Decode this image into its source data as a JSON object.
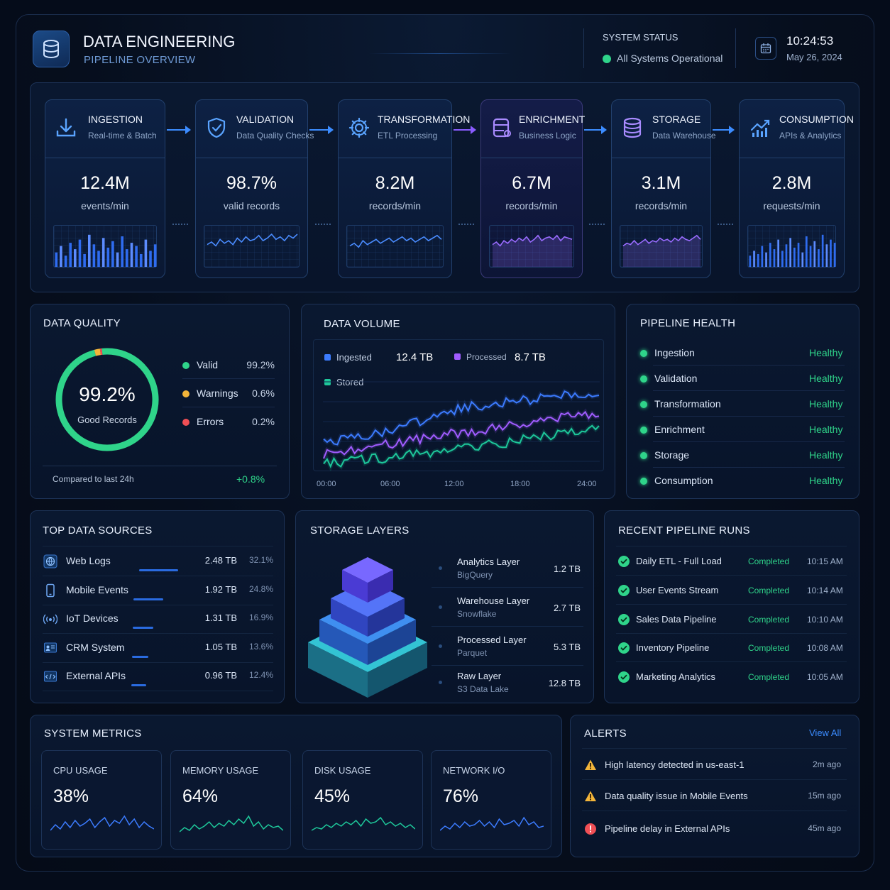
{
  "header": {
    "title": "DATA ENGINEERING",
    "subtitle": "PIPELINE OVERVIEW",
    "system_status_label": "SYSTEM STATUS",
    "system_status_value": "All Systems Operational",
    "time": "10:24:53",
    "date": "May 26, 2024"
  },
  "stages": [
    {
      "name": "INGESTION",
      "sub": "Real-time & Batch",
      "value": "12.4M",
      "unit": "events/min",
      "icon": "download-icon",
      "color": "#3c8cff",
      "chart": "bars",
      "spark": [
        18,
        26,
        14,
        30,
        22,
        34,
        16,
        40,
        28,
        20,
        36,
        24,
        32,
        18,
        38,
        22,
        30,
        26,
        16,
        34,
        20,
        28
      ]
    },
    {
      "name": "VALIDATION",
      "sub": "Data Quality Checks",
      "value": "98.7%",
      "unit": "valid records",
      "icon": "shield-check-icon",
      "color": "#3c8cff",
      "chart": "line",
      "spark": [
        30,
        34,
        28,
        38,
        32,
        36,
        30,
        40,
        34,
        42,
        36,
        38,
        44,
        36,
        40,
        46,
        38,
        42,
        36,
        44,
        40,
        46
      ]
    },
    {
      "name": "TRANSFORMATION",
      "sub": "ETL Processing",
      "value": "8.2M",
      "unit": "records/min",
      "icon": "gear-icon",
      "color": "#3c8cff",
      "chart": "line",
      "spark": [
        28,
        32,
        26,
        36,
        30,
        34,
        38,
        32,
        36,
        40,
        34,
        38,
        42,
        36,
        40,
        34,
        38,
        42,
        36,
        40,
        44,
        38
      ]
    },
    {
      "name": "ENRICHMENT",
      "sub": "Business Logic",
      "value": "6.7M",
      "unit": "records/min",
      "icon": "database-plus-icon",
      "color": "#8a5cff",
      "chart": "area",
      "spark": [
        30,
        34,
        28,
        36,
        32,
        38,
        34,
        40,
        36,
        42,
        34,
        38,
        44,
        36,
        40,
        42,
        38,
        44,
        36,
        42,
        40,
        38
      ]
    },
    {
      "name": "STORAGE",
      "sub": "Data Warehouse",
      "value": "3.1M",
      "unit": "records/min",
      "icon": "database-icon",
      "color": "#8a5cff",
      "chart": "area",
      "spark": [
        28,
        32,
        30,
        36,
        30,
        34,
        38,
        32,
        36,
        34,
        40,
        36,
        38,
        34,
        40,
        36,
        42,
        38,
        36,
        40,
        44,
        38
      ]
    },
    {
      "name": "CONSUMPTION",
      "sub": "APIs & Analytics",
      "value": "2.8M",
      "unit": "requests/min",
      "icon": "chart-up-icon",
      "color": "#3c8cff",
      "chart": "bars",
      "spark": [
        14,
        20,
        16,
        26,
        18,
        30,
        22,
        34,
        20,
        28,
        36,
        24,
        30,
        18,
        38,
        26,
        32,
        22,
        40,
        28,
        34,
        30
      ]
    }
  ],
  "quality": {
    "title": "DATA QUALITY",
    "value": "99.2%",
    "label": "Good Records",
    "items": [
      {
        "name": "Valid",
        "pct": "99.2%",
        "value": 99.2,
        "color": "#2fd48a"
      },
      {
        "name": "Warnings",
        "pct": "0.6%",
        "value": 0.6,
        "color": "#f3b53a"
      },
      {
        "name": "Errors",
        "pct": "0.2%",
        "value": 0.2,
        "color": "#f04f55"
      }
    ],
    "compare_label": "Compared to last 24h",
    "compare_value": "+0.8%"
  },
  "volume": {
    "title": "DATA VOLUME",
    "ingested_label": "Ingested",
    "ingested_value": "12.4 TB",
    "processed_label": "Processed",
    "processed_value": "8.7 TB",
    "stored_label": "Stored",
    "x_ticks": [
      "00:00",
      "06:00",
      "12:00",
      "18:00",
      "24:00"
    ],
    "chart_data": {
      "type": "line",
      "categories": [
        "00:00",
        "06:00",
        "12:00",
        "18:00",
        "24:00"
      ],
      "series": [
        {
          "name": "Ingested",
          "color": "#3c7cff",
          "values": [
            30,
            45,
            72,
            82,
            90
          ]
        },
        {
          "name": "Processed",
          "color": "#a05cff",
          "values": [
            15,
            28,
            42,
            54,
            66
          ]
        },
        {
          "name": "Stored",
          "color": "#1ec79a",
          "values": [
            4,
            12,
            22,
            34,
            46
          ]
        }
      ]
    }
  },
  "health": {
    "title": "PIPELINE HEALTH",
    "items": [
      {
        "name": "Ingestion",
        "status": "Healthy"
      },
      {
        "name": "Validation",
        "status": "Healthy"
      },
      {
        "name": "Transformation",
        "status": "Healthy"
      },
      {
        "name": "Enrichment",
        "status": "Healthy"
      },
      {
        "name": "Storage",
        "status": "Healthy"
      },
      {
        "name": "Consumption",
        "status": "Healthy"
      }
    ]
  },
  "sources": {
    "title": "TOP DATA SOURCES",
    "items": [
      {
        "name": "Web Logs",
        "size": "2.48 TB",
        "pct": "32.1%",
        "value": 32.1,
        "icon": "globe-icon"
      },
      {
        "name": "Mobile Events",
        "size": "1.92 TB",
        "pct": "24.8%",
        "value": 24.8,
        "icon": "phone-icon"
      },
      {
        "name": "IoT Devices",
        "size": "1.31 TB",
        "pct": "16.9%",
        "value": 16.9,
        "icon": "signal-icon"
      },
      {
        "name": "CRM System",
        "size": "1.05 TB",
        "pct": "13.6%",
        "value": 13.6,
        "icon": "crm-icon"
      },
      {
        "name": "External APIs",
        "size": "0.96 TB",
        "pct": "12.4%",
        "value": 12.4,
        "icon": "api-icon"
      }
    ]
  },
  "layers": {
    "title": "STORAGE LAYERS",
    "items": [
      {
        "name": "Analytics Layer",
        "sub": "BigQuery",
        "size": "1.2 TB"
      },
      {
        "name": "Warehouse Layer",
        "sub": "Snowflake",
        "size": "2.7 TB"
      },
      {
        "name": "Processed Layer",
        "sub": "Parquet",
        "size": "5.3 TB"
      },
      {
        "name": "Raw Layer",
        "sub": "S3 Data Lake",
        "size": "12.8 TB"
      }
    ]
  },
  "runs": {
    "title": "RECENT PIPELINE RUNS",
    "items": [
      {
        "name": "Daily ETL - Full Load",
        "status": "Completed",
        "time": "10:15 AM"
      },
      {
        "name": "User Events Stream",
        "status": "Completed",
        "time": "10:14 AM"
      },
      {
        "name": "Sales Data Pipeline",
        "status": "Completed",
        "time": "10:10 AM"
      },
      {
        "name": "Inventory Pipeline",
        "status": "Completed",
        "time": "10:08 AM"
      },
      {
        "name": "Marketing Analytics",
        "status": "Completed",
        "time": "10:05 AM"
      }
    ]
  },
  "metrics": {
    "title": "SYSTEM METRICS",
    "items": [
      {
        "label": "CPU USAGE",
        "value": "38%",
        "color": "#3c7cff",
        "spark": [
          6,
          14,
          8,
          18,
          10,
          20,
          12,
          16,
          22,
          10,
          18,
          24,
          12,
          20,
          16,
          26,
          14,
          22,
          10,
          18,
          12,
          8
        ]
      },
      {
        "label": "MEMORY USAGE",
        "value": "64%",
        "color": "#1ec79a",
        "spark": [
          4,
          10,
          6,
          14,
          8,
          12,
          18,
          10,
          16,
          12,
          20,
          14,
          22,
          16,
          26,
          12,
          18,
          8,
          14,
          10,
          12,
          6
        ]
      },
      {
        "label": "DISK USAGE",
        "value": "45%",
        "color": "#1ec79a",
        "spark": [
          6,
          10,
          8,
          14,
          10,
          16,
          12,
          18,
          14,
          20,
          12,
          22,
          16,
          18,
          24,
          14,
          18,
          12,
          16,
          10,
          14,
          8
        ]
      },
      {
        "label": "NETWORK I/O",
        "value": "76%",
        "color": "#3c7cff",
        "spark": [
          6,
          12,
          8,
          16,
          10,
          18,
          12,
          14,
          20,
          12,
          18,
          10,
          22,
          14,
          16,
          20,
          12,
          24,
          14,
          18,
          10,
          12
        ]
      }
    ]
  },
  "alerts": {
    "title": "ALERTS",
    "view_all": "View All",
    "items": [
      {
        "type": "warning",
        "text": "High latency detected in us-east-1",
        "time": "2m ago"
      },
      {
        "type": "warning",
        "text": "Data quality issue in Mobile Events",
        "time": "15m ago"
      },
      {
        "type": "error",
        "text": "Pipeline delay in External APIs",
        "time": "45m ago"
      }
    ]
  }
}
